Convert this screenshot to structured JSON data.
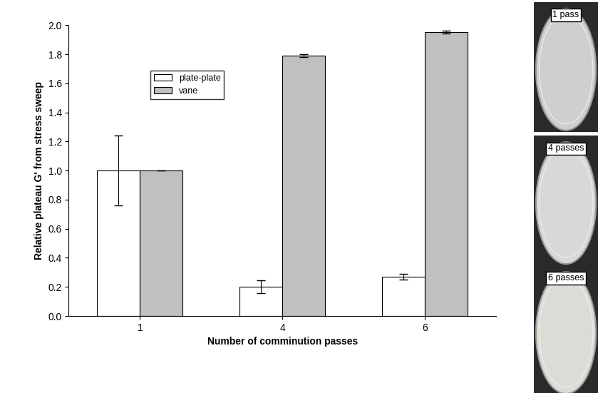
{
  "chart_data": {
    "type": "bar",
    "x_label": "Number of comminution passes",
    "y_label": "Relative plateau G' from stress sweep",
    "categories": [
      "1",
      "4",
      "6"
    ],
    "series": [
      {
        "name": "plate-plate",
        "color": "#ffffff",
        "values": [
          1.0,
          0.2,
          0.27
        ],
        "errors": [
          0.24,
          0.045,
          0.02
        ]
      },
      {
        "name": "vane",
        "color": "#c0c0c0",
        "values": [
          1.0,
          1.79,
          1.95
        ],
        "errors": [
          0.0,
          0.01,
          0.01
        ]
      }
    ],
    "ylim": [
      0.0,
      2.0
    ],
    "yticks": [
      0.0,
      0.2,
      0.4,
      0.6,
      0.8,
      1.0,
      1.2,
      1.4,
      1.6,
      1.8,
      2.0
    ],
    "legend": "upper left",
    "annotations": [
      "1 pass",
      "4 passes",
      "6 passes"
    ]
  }
}
